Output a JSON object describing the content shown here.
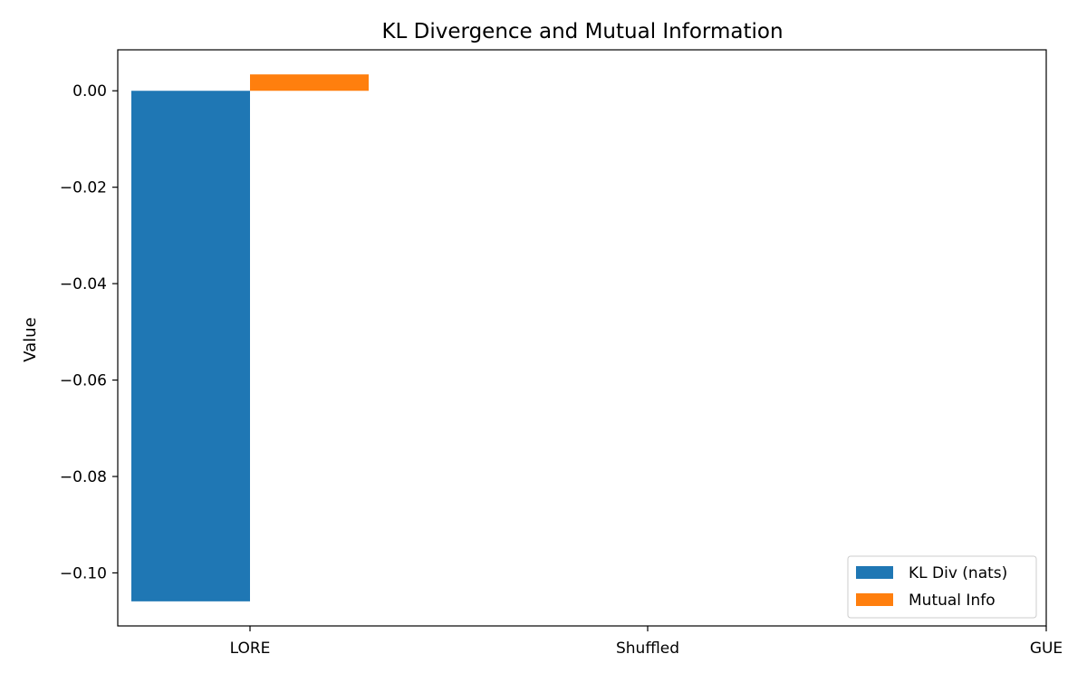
{
  "chart_data": {
    "type": "bar",
    "title": "KL Divergence and Mutual Information",
    "xlabel": "",
    "ylabel": "Value",
    "categories": [
      "LORE",
      "Shuffled",
      "GUE"
    ],
    "series": [
      {
        "name": "KL Div (nats)",
        "color": "#1f77b4",
        "values": [
          -0.1059,
          0.0,
          0.0
        ]
      },
      {
        "name": "Mutual Info",
        "color": "#ff7f0e",
        "values": [
          0.0034,
          0.0,
          0.0
        ]
      }
    ],
    "ylim": [
      -0.111,
      0.0085
    ],
    "yticks": [
      0.0,
      -0.02,
      -0.04,
      -0.06,
      -0.08,
      -0.1
    ],
    "ytick_labels": [
      "0.00",
      "−0.02",
      "−0.04",
      "−0.06",
      "−0.08",
      "−0.10"
    ],
    "grid": false,
    "legend_position": "lower-right"
  }
}
